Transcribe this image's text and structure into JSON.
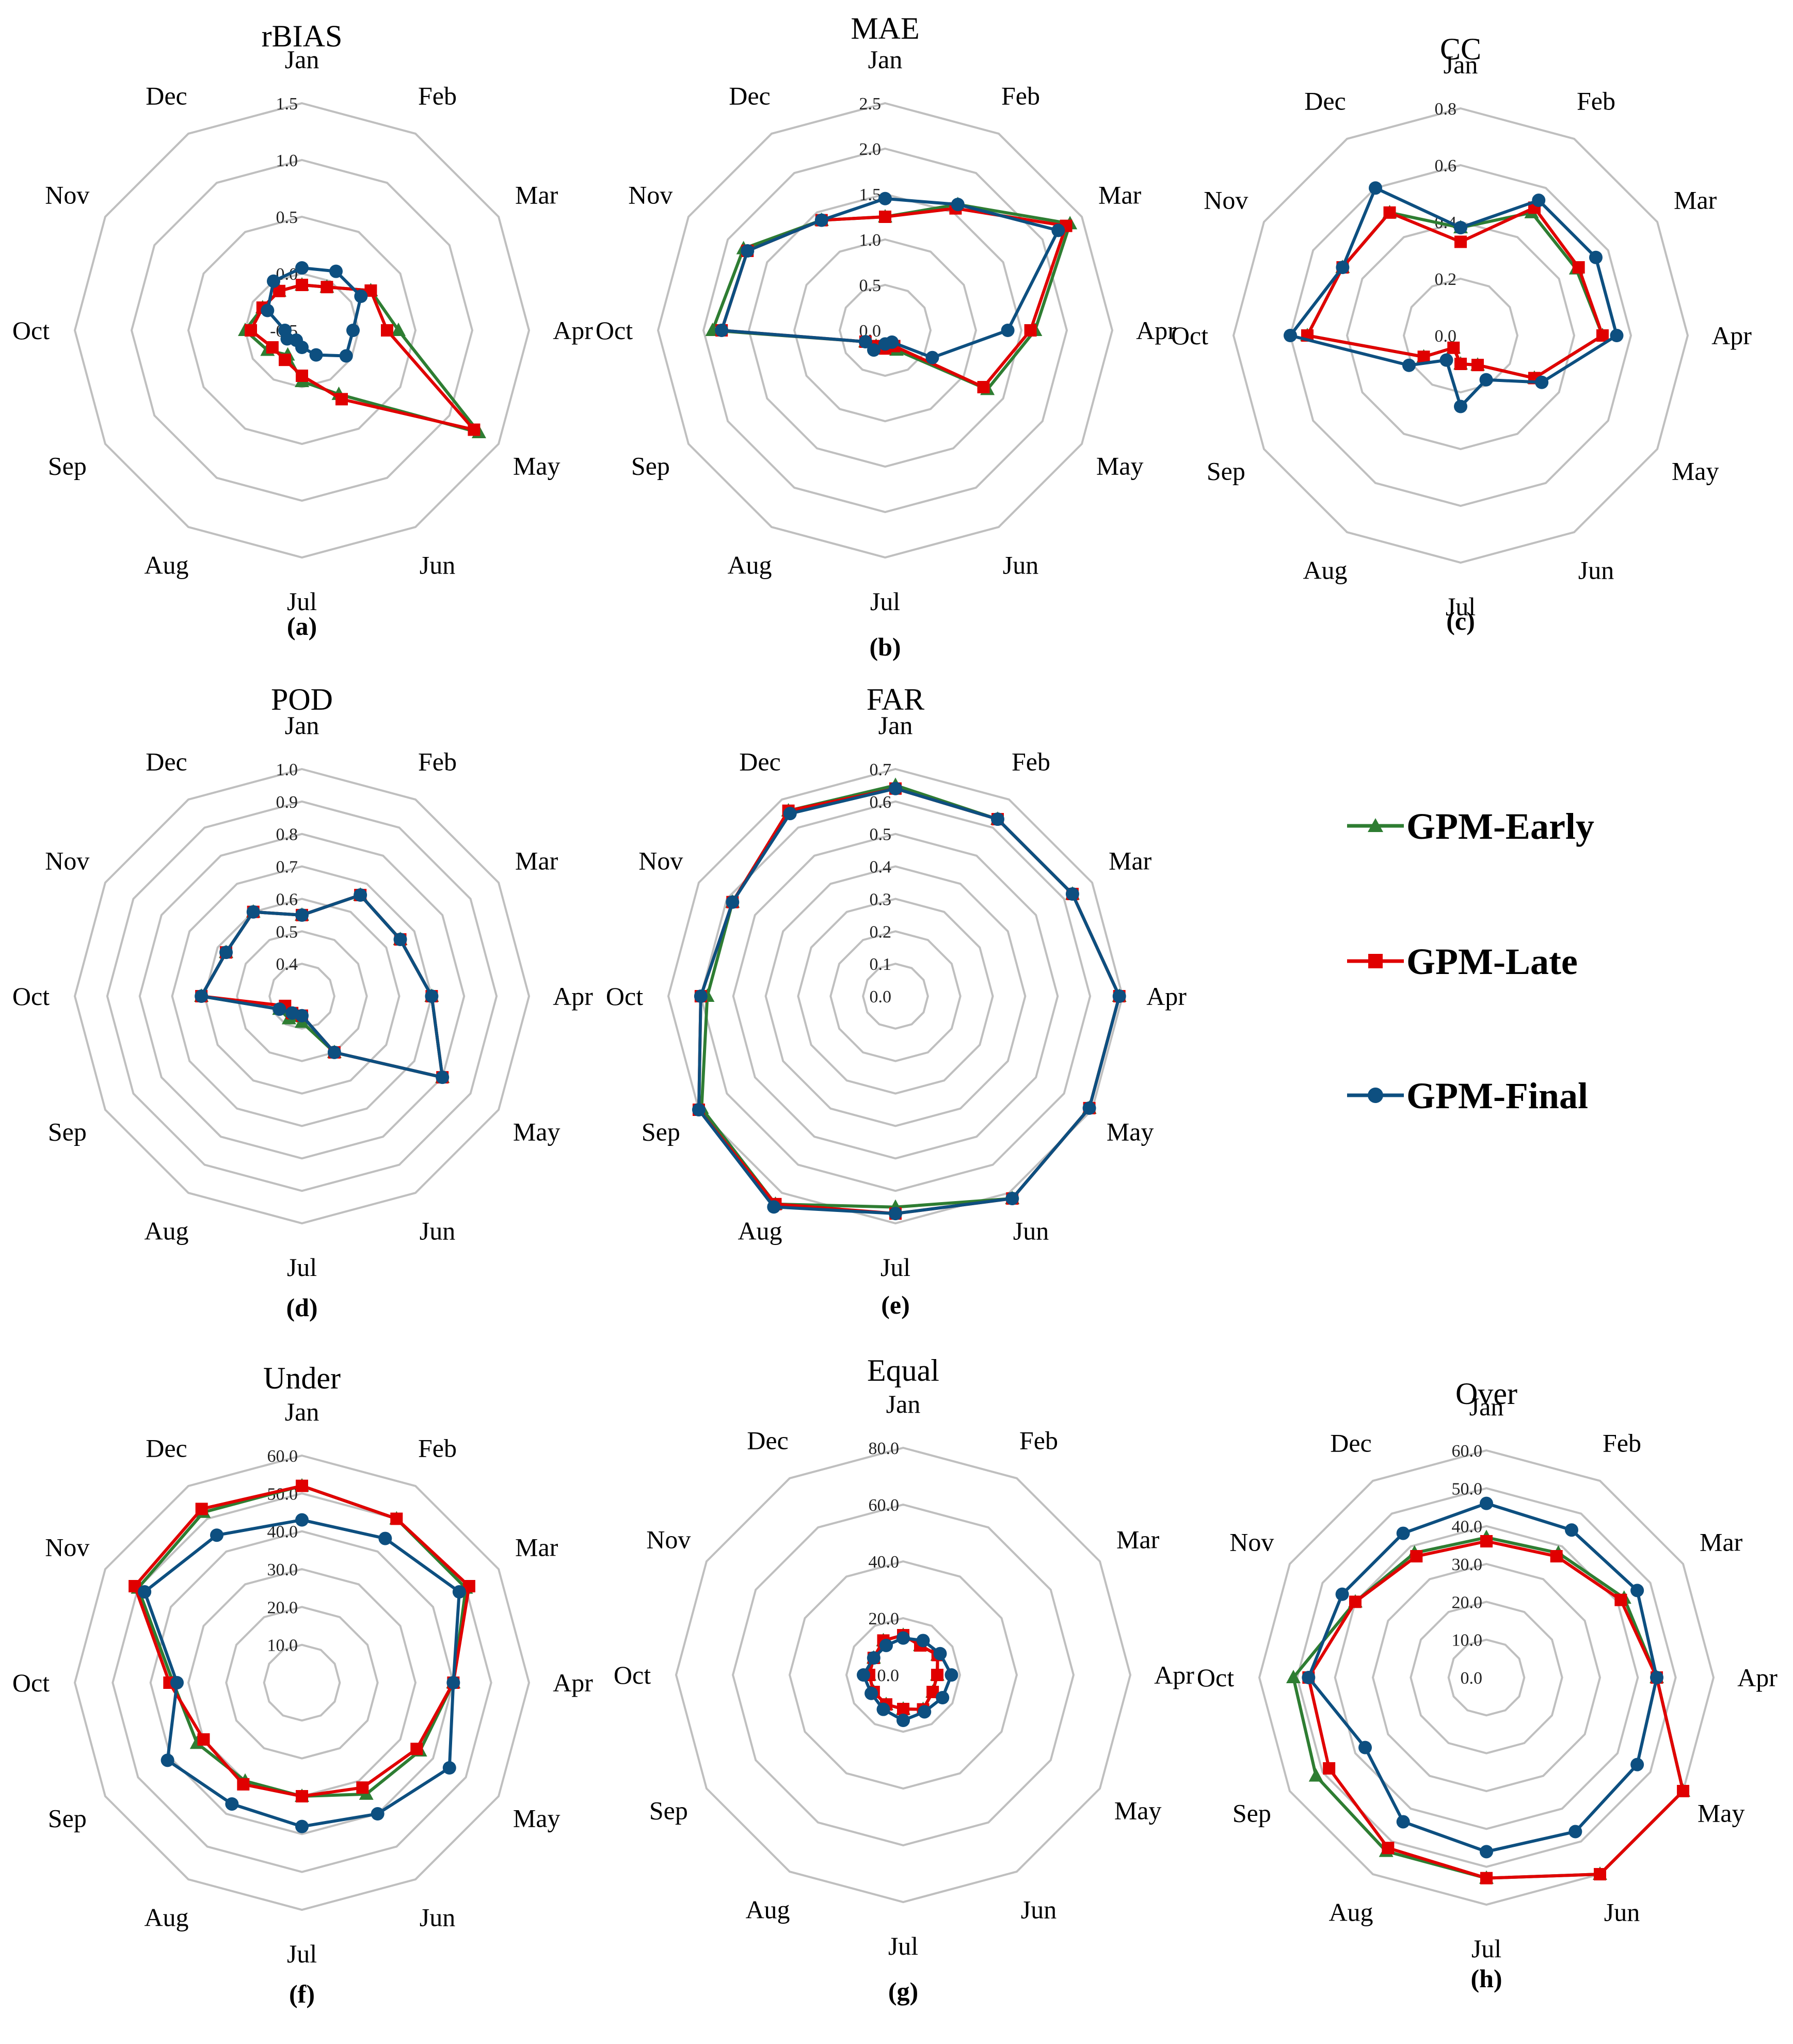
{
  "legend": [
    {
      "name": "GPM-Early",
      "color": "#2e7d32",
      "marker": "triangle"
    },
    {
      "name": "GPM-Late",
      "color": "#e00000",
      "marker": "square"
    },
    {
      "name": "GPM-Final",
      "color": "#0d4f80",
      "marker": "circle"
    }
  ],
  "chart_data": [
    {
      "type": "radar",
      "title": "rBIAS",
      "panel": "(a)",
      "categories": [
        "Jan",
        "Feb",
        "Mar",
        "Apr",
        "May",
        "Jun",
        "Jul",
        "Aug",
        "Sep",
        "Oct",
        "Nov",
        "Dec"
      ],
      "rmin": -0.5,
      "rmax": 1.5,
      "ticks": [
        "-0.5",
        "0.0",
        "0.5",
        "1.0",
        "1.5"
      ],
      "tick_values": [
        -0.5,
        0.0,
        0.5,
        1.0,
        1.5
      ],
      "series": [
        {
          "name": "GPM-Early",
          "values": [
            -0.1,
            -0.06,
            0.2,
            0.35,
            1.3,
            0.15,
            -0.05,
            -0.25,
            -0.15,
            0.0,
            -0.1,
            -0.1
          ]
        },
        {
          "name": "GPM-Late",
          "values": [
            -0.1,
            -0.06,
            0.2,
            0.25,
            1.25,
            0.2,
            -0.1,
            -0.2,
            -0.2,
            -0.05,
            -0.1,
            -0.1
          ]
        },
        {
          "name": "GPM-Final",
          "values": [
            0.05,
            0.1,
            0.1,
            -0.05,
            -0.05,
            -0.25,
            -0.35,
            -0.4,
            -0.35,
            -0.35,
            -0.15,
            0.0
          ]
        }
      ]
    },
    {
      "type": "radar",
      "title": "MAE",
      "panel": "(b)",
      "categories": [
        "Jan",
        "Feb",
        "Mar",
        "Apr",
        "May",
        "Jun",
        "Jul",
        "Aug",
        "Sep",
        "Oct",
        "Nov",
        "Dec"
      ],
      "rmin": 0,
      "rmax": 2.5,
      "ticks": [
        "0.0",
        "0.5",
        "1.0",
        "1.5",
        "2.0",
        "2.5"
      ],
      "tick_values": [
        0,
        0.5,
        1.0,
        1.5,
        2.0,
        2.5
      ],
      "series": [
        {
          "name": "GPM-Early",
          "values": [
            1.25,
            1.6,
            2.35,
            1.65,
            1.3,
            0.25,
            0.2,
            0.2,
            0.25,
            1.9,
            1.8,
            1.4
          ]
        },
        {
          "name": "GPM-Late",
          "values": [
            1.25,
            1.55,
            2.3,
            1.6,
            1.25,
            0.2,
            0.2,
            0.2,
            0.25,
            1.8,
            1.75,
            1.4
          ]
        },
        {
          "name": "GPM-Final",
          "values": [
            1.45,
            1.6,
            2.2,
            1.35,
            0.6,
            0.15,
            0.15,
            0.25,
            0.25,
            1.8,
            1.75,
            1.4
          ]
        }
      ]
    },
    {
      "type": "radar",
      "title": "CC",
      "panel": "(c)",
      "categories": [
        "Jan",
        "Feb",
        "Mar",
        "Apr",
        "May",
        "Jun",
        "Jul",
        "Aug",
        "Sep",
        "Oct",
        "Nov",
        "Dec"
      ],
      "rmin": 0,
      "rmax": 0.8,
      "ticks": [
        "0.0",
        "0.2",
        "0.4",
        "0.6",
        "0.8"
      ],
      "tick_values": [
        0,
        0.2,
        0.4,
        0.6,
        0.8
      ],
      "series": [
        {
          "name": "GPM-Early",
          "values": [
            0.38,
            0.5,
            0.47,
            0.5,
            0.3,
            0.12,
            0.1,
            0.05,
            0.15,
            0.54,
            0.48,
            0.5
          ]
        },
        {
          "name": "GPM-Late",
          "values": [
            0.33,
            0.52,
            0.48,
            0.5,
            0.3,
            0.12,
            0.1,
            0.05,
            0.15,
            0.54,
            0.48,
            0.5
          ]
        },
        {
          "name": "GPM-Final",
          "values": [
            0.38,
            0.55,
            0.55,
            0.55,
            0.33,
            0.18,
            0.25,
            0.1,
            0.21,
            0.6,
            0.48,
            0.6
          ]
        }
      ]
    },
    {
      "type": "radar",
      "title": "POD",
      "panel": "(d)",
      "categories": [
        "Jan",
        "Feb",
        "Mar",
        "Apr",
        "May",
        "Jun",
        "Jul",
        "Aug",
        "Sep",
        "Oct",
        "Nov",
        "Dec"
      ],
      "rmin": 0.3,
      "rmax": 1.0,
      "ticks": [
        "0.4",
        "0.5",
        "0.6",
        "0.7",
        "0.8",
        "0.9",
        "1.0"
      ],
      "tick_values": [
        0.4,
        0.5,
        0.6,
        0.7,
        0.8,
        0.9,
        1.0
      ],
      "series": [
        {
          "name": "GPM-Early",
          "values": [
            0.55,
            0.66,
            0.65,
            0.7,
            0.8,
            0.5,
            0.38,
            0.38,
            0.38,
            0.61,
            0.57,
            0.6
          ]
        },
        {
          "name": "GPM-Late",
          "values": [
            0.55,
            0.66,
            0.65,
            0.7,
            0.8,
            0.5,
            0.36,
            0.36,
            0.36,
            0.61,
            0.57,
            0.6
          ]
        },
        {
          "name": "GPM-Final",
          "values": [
            0.55,
            0.66,
            0.65,
            0.7,
            0.8,
            0.5,
            0.36,
            0.36,
            0.38,
            0.61,
            0.57,
            0.6
          ]
        }
      ]
    },
    {
      "type": "radar",
      "title": "FAR",
      "panel": "(e)",
      "categories": [
        "Jan",
        "Feb",
        "Mar",
        "Apr",
        "May",
        "Jun",
        "Jul",
        "Aug",
        "Sep",
        "Oct",
        "Nov",
        "Dec"
      ],
      "rmin": 0,
      "rmax": 0.7,
      "ticks": [
        "0.0",
        "0.1",
        "0.2",
        "0.3",
        "0.4",
        "0.5",
        "0.6",
        "0.7"
      ],
      "tick_values": [
        0,
        0.1,
        0.2,
        0.3,
        0.4,
        0.5,
        0.6,
        0.7
      ],
      "series": [
        {
          "name": "GPM-Early",
          "values": [
            0.65,
            0.63,
            0.63,
            0.69,
            0.69,
            0.72,
            0.65,
            0.74,
            0.69,
            0.58,
            0.58,
            0.66
          ]
        },
        {
          "name": "GPM-Late",
          "values": [
            0.64,
            0.63,
            0.63,
            0.69,
            0.69,
            0.72,
            0.67,
            0.74,
            0.7,
            0.6,
            0.58,
            0.66
          ]
        },
        {
          "name": "GPM-Final",
          "values": [
            0.64,
            0.63,
            0.63,
            0.69,
            0.69,
            0.72,
            0.67,
            0.75,
            0.7,
            0.6,
            0.58,
            0.65
          ]
        }
      ]
    },
    {
      "type": "radar",
      "title": "Under",
      "panel": "(f)",
      "categories": [
        "Jan",
        "Feb",
        "Mar",
        "Apr",
        "May",
        "Jun",
        "Jul",
        "Aug",
        "Sep",
        "Oct",
        "Nov",
        "Dec"
      ],
      "rmin": 0,
      "rmax": 60,
      "ticks": [
        "10.0",
        "20.0",
        "30.0",
        "40.0",
        "50.0",
        "60.0"
      ],
      "tick_values": [
        10,
        20,
        30,
        40,
        50,
        60
      ],
      "series": [
        {
          "name": "GPM-Early",
          "values": [
            52,
            50,
            50,
            40,
            36,
            34,
            30,
            30,
            32,
            34,
            50,
            52
          ]
        },
        {
          "name": "GPM-Late",
          "values": [
            52,
            50,
            51,
            40,
            35,
            32,
            30,
            31,
            30,
            35,
            51,
            53
          ]
        },
        {
          "name": "GPM-Final",
          "values": [
            43,
            44,
            48,
            40,
            45,
            40,
            38,
            37,
            41,
            33,
            48,
            45
          ]
        }
      ]
    },
    {
      "type": "radar",
      "title": "Equal",
      "panel": "(g)",
      "categories": [
        "Jan",
        "Feb",
        "Mar",
        "Apr",
        "May",
        "Jun",
        "Jul",
        "Aug",
        "Sep",
        "Oct",
        "Nov",
        "Dec"
      ],
      "rmin": 0,
      "rmax": 80,
      "ticks": [
        "0.0",
        "20.0",
        "40.0",
        "60.0",
        "80.0"
      ],
      "tick_values": [
        0,
        20,
        40,
        60,
        80
      ],
      "series": [
        {
          "name": "GPM-Early",
          "values": [
            14,
            12,
            14,
            12,
            12,
            14,
            12,
            12,
            12,
            12,
            12,
            14
          ]
        },
        {
          "name": "GPM-Late",
          "values": [
            14,
            12,
            14,
            12,
            12,
            14,
            12,
            12,
            12,
            12,
            12,
            14
          ]
        },
        {
          "name": "GPM-Final",
          "values": [
            13,
            14,
            15,
            17,
            16,
            15,
            16,
            14,
            13,
            14,
            12,
            12
          ]
        }
      ]
    },
    {
      "type": "radar",
      "title": "Over",
      "panel": "(h)",
      "categories": [
        "Jan",
        "Feb",
        "Mar",
        "Apr",
        "May",
        "Jun",
        "Jul",
        "Aug",
        "Sep",
        "Oct",
        "Nov",
        "Dec"
      ],
      "rmin": 0,
      "rmax": 60,
      "ticks": [
        "0.0",
        "10.0",
        "20.0",
        "30.0",
        "40.0",
        "50.0",
        "60.0"
      ],
      "tick_values": [
        0,
        10,
        20,
        30,
        40,
        50,
        60
      ],
      "series": [
        {
          "name": "GPM-Early",
          "values": [
            37,
            38,
            42,
            45,
            60,
            60,
            53,
            53,
            52,
            51,
            40,
            38
          ]
        },
        {
          "name": "GPM-Late",
          "values": [
            36,
            37,
            41,
            45,
            60,
            60,
            53,
            52,
            48,
            47,
            40,
            37
          ]
        },
        {
          "name": "GPM-Final",
          "values": [
            46,
            45,
            46,
            45,
            46,
            47,
            46,
            44,
            37,
            47,
            44,
            44
          ]
        }
      ]
    }
  ]
}
